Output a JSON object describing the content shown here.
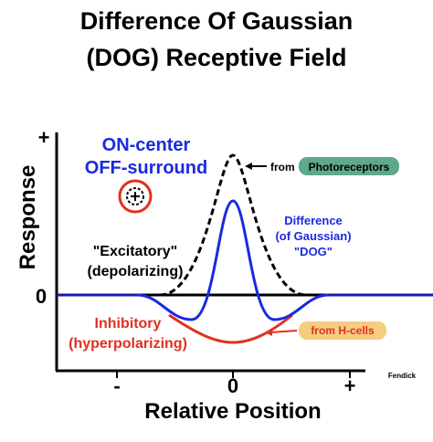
{
  "title": [
    "Difference Of Gaussian",
    "(DOG) Receptive Field"
  ],
  "y_axis": {
    "label": "Response",
    "ticks": [
      "+",
      "0"
    ]
  },
  "x_axis": {
    "label": "Relative Position",
    "ticks": [
      "-",
      "0",
      "+"
    ]
  },
  "annotations": {
    "center_surround": [
      "ON-center",
      "OFF-surround"
    ],
    "excitatory": [
      "\"Excitatory\"",
      "(depolarizing)"
    ],
    "inhibitory": [
      "Inhibitory",
      "(hyperpolarizing)"
    ],
    "photoreceptors": [
      "from",
      "Photoreceptors"
    ],
    "dog": [
      "Difference",
      "(of Gaussian)",
      "\"DOG\""
    ],
    "h_cells": "from H-cells",
    "credit": "Fendick"
  }
}
